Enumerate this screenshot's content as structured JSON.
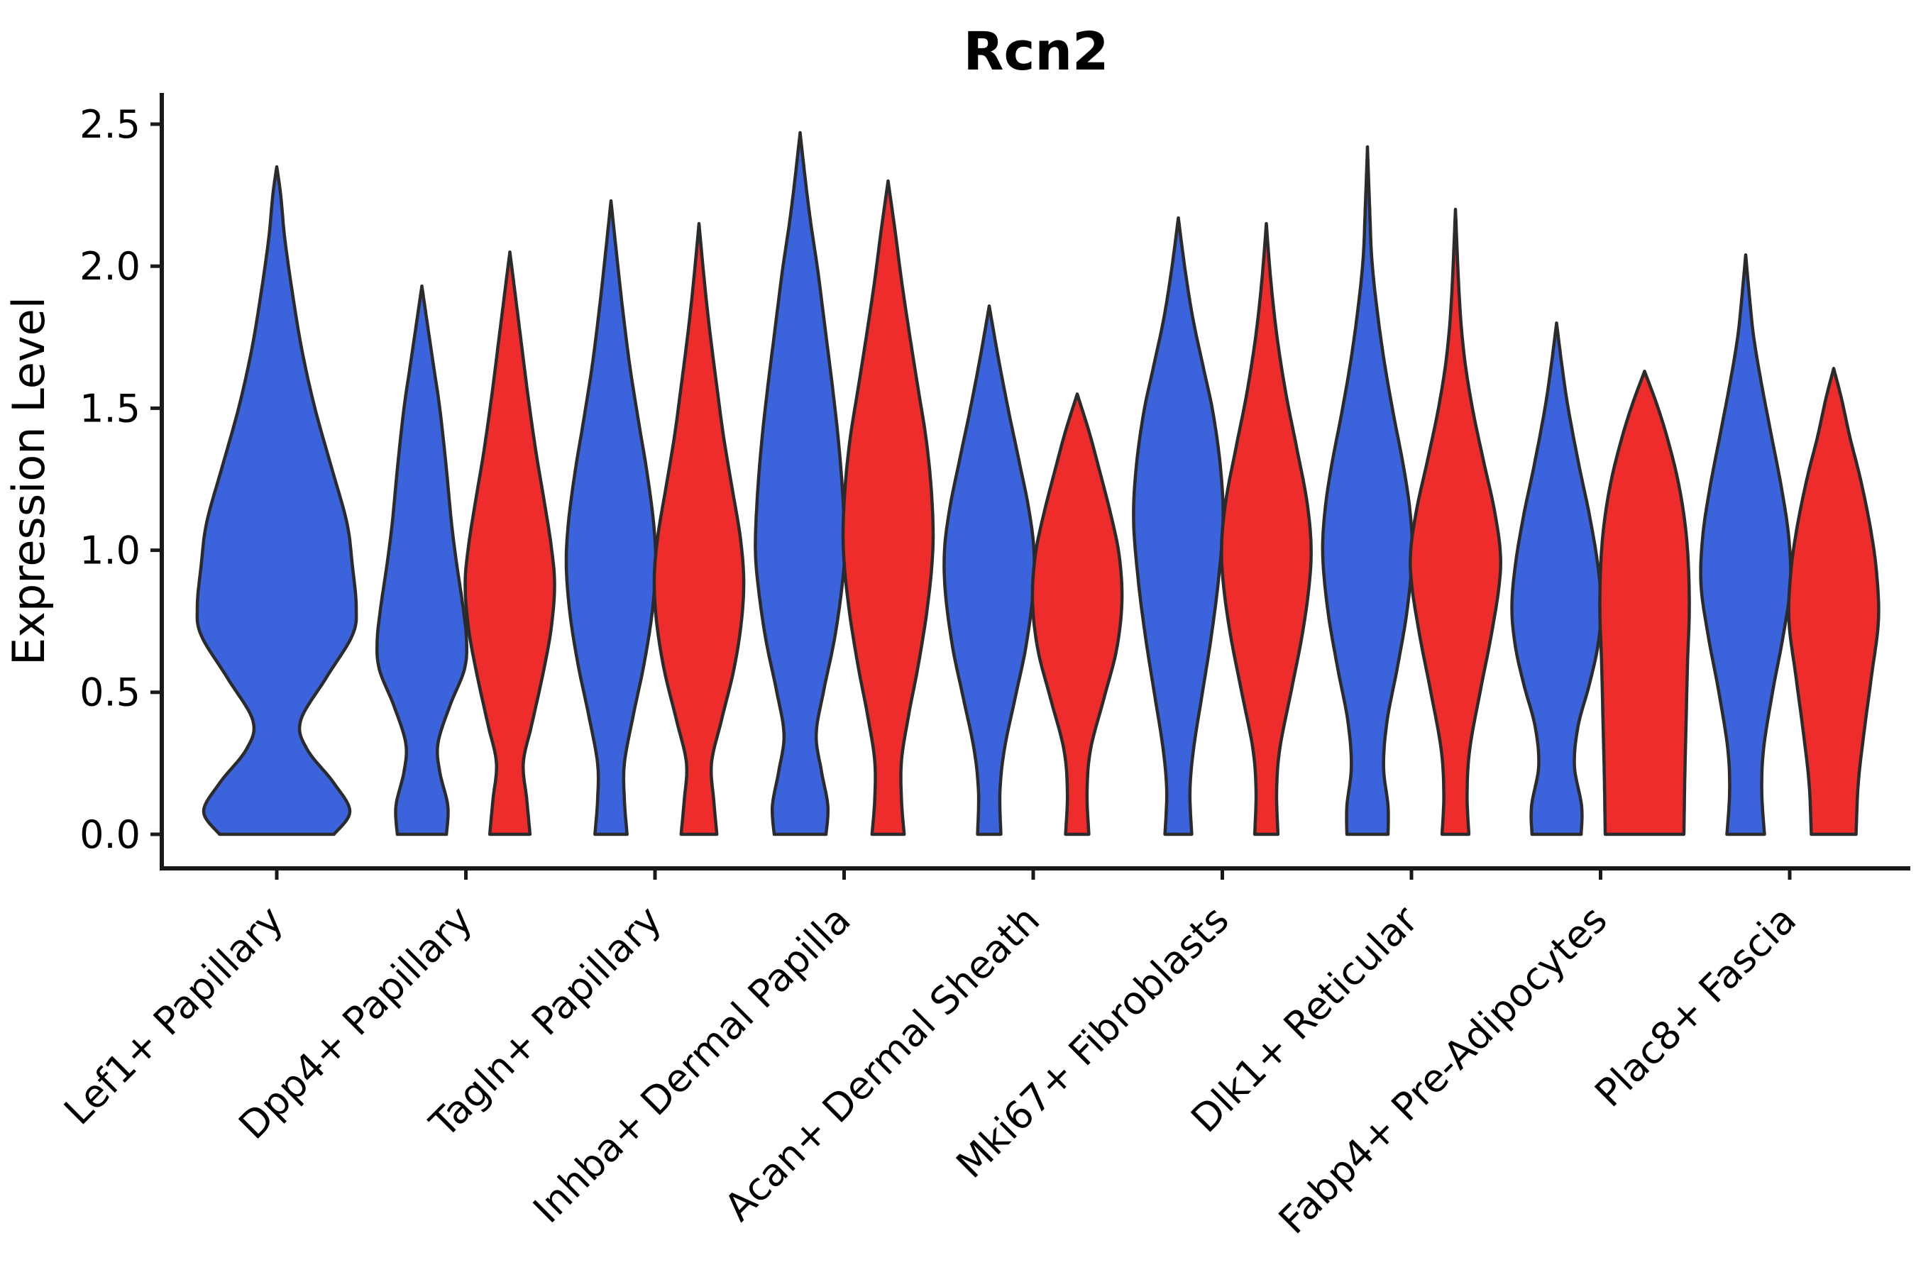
{
  "chart_data": {
    "type": "violin",
    "title": "Rcn2",
    "ylabel": "Expression Level",
    "ylim": [
      0,
      2.5
    ],
    "ytick_labels": [
      "0.0",
      "0.5",
      "1.0",
      "1.5",
      "2.0",
      "2.5"
    ],
    "grid": false,
    "legend": "none",
    "colors": {
      "blue": "#3A63DC",
      "red": "#EE2C2C",
      "outline": "#2B2B2B",
      "axis": "#1A1A1A",
      "text": "#000000"
    },
    "categories": [
      "Lef1+ Papillary",
      "Dpp4+ Papillary",
      "Tagln+ Papillary",
      "Inhba+ Dermal Papilla",
      "Acan+ Dermal Sheath",
      "Mki67+ Fibroblasts",
      "Dlk1+ Reticular",
      "Fabp4+ Pre-Adipocytes",
      "Plac8+ Fascia"
    ],
    "violins": [
      {
        "category": 0,
        "offset": "center",
        "color": "blue",
        "max_expression": 2.35,
        "profile": [
          [
            0,
            0.72
          ],
          [
            0.08,
            0.92
          ],
          [
            0.18,
            0.72
          ],
          [
            0.3,
            0.38
          ],
          [
            0.4,
            0.3
          ],
          [
            0.55,
            0.62
          ],
          [
            0.7,
            0.95
          ],
          [
            0.8,
            1.0
          ],
          [
            0.95,
            0.95
          ],
          [
            1.1,
            0.88
          ],
          [
            1.3,
            0.68
          ],
          [
            1.5,
            0.48
          ],
          [
            1.7,
            0.32
          ],
          [
            1.9,
            0.2
          ],
          [
            2.1,
            0.1
          ],
          [
            2.25,
            0.05
          ],
          [
            2.35,
            0
          ]
        ]
      },
      {
        "category": 1,
        "offset": "left",
        "color": "blue",
        "max_expression": 1.93,
        "profile": [
          [
            0,
            0.55
          ],
          [
            0.1,
            0.58
          ],
          [
            0.22,
            0.4
          ],
          [
            0.32,
            0.36
          ],
          [
            0.45,
            0.62
          ],
          [
            0.58,
            0.95
          ],
          [
            0.68,
            1.0
          ],
          [
            0.8,
            0.92
          ],
          [
            0.95,
            0.78
          ],
          [
            1.1,
            0.66
          ],
          [
            1.3,
            0.54
          ],
          [
            1.5,
            0.4
          ],
          [
            1.65,
            0.26
          ],
          [
            1.8,
            0.12
          ],
          [
            1.93,
            0
          ]
        ]
      },
      {
        "category": 1,
        "offset": "right",
        "color": "red",
        "max_expression": 2.05,
        "profile": [
          [
            0,
            0.45
          ],
          [
            0.12,
            0.38
          ],
          [
            0.25,
            0.3
          ],
          [
            0.38,
            0.48
          ],
          [
            0.55,
            0.72
          ],
          [
            0.72,
            0.92
          ],
          [
            0.88,
            1.0
          ],
          [
            1.02,
            0.92
          ],
          [
            1.18,
            0.76
          ],
          [
            1.35,
            0.58
          ],
          [
            1.55,
            0.4
          ],
          [
            1.75,
            0.24
          ],
          [
            1.9,
            0.12
          ],
          [
            2.05,
            0
          ]
        ]
      },
      {
        "category": 2,
        "offset": "left",
        "color": "blue",
        "max_expression": 2.23,
        "profile": [
          [
            0,
            0.36
          ],
          [
            0.12,
            0.3
          ],
          [
            0.25,
            0.3
          ],
          [
            0.42,
            0.5
          ],
          [
            0.6,
            0.74
          ],
          [
            0.78,
            0.92
          ],
          [
            0.95,
            1.0
          ],
          [
            1.1,
            0.95
          ],
          [
            1.28,
            0.8
          ],
          [
            1.45,
            0.62
          ],
          [
            1.65,
            0.42
          ],
          [
            1.85,
            0.26
          ],
          [
            2.05,
            0.12
          ],
          [
            2.23,
            0
          ]
        ]
      },
      {
        "category": 2,
        "offset": "right",
        "color": "red",
        "max_expression": 2.15,
        "profile": [
          [
            0,
            0.4
          ],
          [
            0.12,
            0.33
          ],
          [
            0.25,
            0.28
          ],
          [
            0.4,
            0.5
          ],
          [
            0.58,
            0.78
          ],
          [
            0.75,
            0.95
          ],
          [
            0.9,
            1.0
          ],
          [
            1.05,
            0.92
          ],
          [
            1.22,
            0.74
          ],
          [
            1.4,
            0.55
          ],
          [
            1.6,
            0.38
          ],
          [
            1.8,
            0.22
          ],
          [
            1.98,
            0.1
          ],
          [
            2.15,
            0
          ]
        ]
      },
      {
        "category": 3,
        "offset": "left",
        "color": "blue",
        "max_expression": 2.47,
        "profile": [
          [
            0,
            0.58
          ],
          [
            0.1,
            0.62
          ],
          [
            0.22,
            0.48
          ],
          [
            0.35,
            0.36
          ],
          [
            0.5,
            0.52
          ],
          [
            0.68,
            0.76
          ],
          [
            0.85,
            0.92
          ],
          [
            1.0,
            1.0
          ],
          [
            1.18,
            0.96
          ],
          [
            1.38,
            0.86
          ],
          [
            1.58,
            0.72
          ],
          [
            1.78,
            0.56
          ],
          [
            1.98,
            0.4
          ],
          [
            2.15,
            0.24
          ],
          [
            2.3,
            0.12
          ],
          [
            2.47,
            0
          ]
        ]
      },
      {
        "category": 3,
        "offset": "right",
        "color": "red",
        "max_expression": 2.3,
        "profile": [
          [
            0,
            0.36
          ],
          [
            0.12,
            0.3
          ],
          [
            0.26,
            0.3
          ],
          [
            0.42,
            0.46
          ],
          [
            0.6,
            0.68
          ],
          [
            0.8,
            0.88
          ],
          [
            1.0,
            1.0
          ],
          [
            1.18,
            0.98
          ],
          [
            1.38,
            0.86
          ],
          [
            1.58,
            0.66
          ],
          [
            1.78,
            0.46
          ],
          [
            1.95,
            0.3
          ],
          [
            2.12,
            0.16
          ],
          [
            2.3,
            0
          ]
        ]
      },
      {
        "category": 4,
        "offset": "left",
        "color": "blue",
        "max_expression": 1.86,
        "profile": [
          [
            0,
            0.26
          ],
          [
            0.15,
            0.24
          ],
          [
            0.3,
            0.34
          ],
          [
            0.48,
            0.58
          ],
          [
            0.66,
            0.82
          ],
          [
            0.85,
            0.98
          ],
          [
            1.0,
            1.0
          ],
          [
            1.15,
            0.88
          ],
          [
            1.32,
            0.66
          ],
          [
            1.5,
            0.42
          ],
          [
            1.68,
            0.2
          ],
          [
            1.86,
            0
          ]
        ]
      },
      {
        "category": 4,
        "offset": "right",
        "color": "red",
        "max_expression": 1.55,
        "profile": [
          [
            0,
            0.26
          ],
          [
            0.15,
            0.22
          ],
          [
            0.3,
            0.3
          ],
          [
            0.48,
            0.6
          ],
          [
            0.65,
            0.88
          ],
          [
            0.82,
            1.0
          ],
          [
            0.98,
            0.94
          ],
          [
            1.12,
            0.76
          ],
          [
            1.28,
            0.5
          ],
          [
            1.42,
            0.26
          ],
          [
            1.55,
            0
          ]
        ]
      },
      {
        "category": 5,
        "offset": "left",
        "color": "blue",
        "max_expression": 2.17,
        "profile": [
          [
            0,
            0.3
          ],
          [
            0.15,
            0.26
          ],
          [
            0.3,
            0.34
          ],
          [
            0.5,
            0.54
          ],
          [
            0.7,
            0.74
          ],
          [
            0.9,
            0.9
          ],
          [
            1.1,
            1.0
          ],
          [
            1.28,
            0.95
          ],
          [
            1.48,
            0.78
          ],
          [
            1.65,
            0.55
          ],
          [
            1.82,
            0.32
          ],
          [
            2.0,
            0.14
          ],
          [
            2.17,
            0
          ]
        ]
      },
      {
        "category": 5,
        "offset": "right",
        "color": "red",
        "max_expression": 2.15,
        "profile": [
          [
            0,
            0.26
          ],
          [
            0.15,
            0.23
          ],
          [
            0.3,
            0.3
          ],
          [
            0.5,
            0.55
          ],
          [
            0.7,
            0.8
          ],
          [
            0.88,
            0.96
          ],
          [
            1.02,
            1.0
          ],
          [
            1.18,
            0.9
          ],
          [
            1.36,
            0.68
          ],
          [
            1.55,
            0.44
          ],
          [
            1.75,
            0.24
          ],
          [
            1.95,
            0.1
          ],
          [
            2.15,
            0
          ]
        ]
      },
      {
        "category": 6,
        "offset": "left",
        "color": "blue",
        "max_expression": 2.42,
        "profile": [
          [
            0,
            0.46
          ],
          [
            0.1,
            0.46
          ],
          [
            0.24,
            0.36
          ],
          [
            0.4,
            0.44
          ],
          [
            0.58,
            0.66
          ],
          [
            0.78,
            0.88
          ],
          [
            0.98,
            1.0
          ],
          [
            1.14,
            0.95
          ],
          [
            1.3,
            0.8
          ],
          [
            1.48,
            0.58
          ],
          [
            1.66,
            0.38
          ],
          [
            1.84,
            0.22
          ],
          [
            2.02,
            0.1
          ],
          [
            2.2,
            0.05
          ],
          [
            2.42,
            0
          ]
        ]
      },
      {
        "category": 6,
        "offset": "right",
        "color": "red",
        "max_expression": 2.2,
        "profile": [
          [
            0,
            0.3
          ],
          [
            0.14,
            0.26
          ],
          [
            0.3,
            0.32
          ],
          [
            0.5,
            0.55
          ],
          [
            0.7,
            0.8
          ],
          [
            0.88,
            0.98
          ],
          [
            1.0,
            1.0
          ],
          [
            1.15,
            0.86
          ],
          [
            1.32,
            0.62
          ],
          [
            1.5,
            0.38
          ],
          [
            1.68,
            0.2
          ],
          [
            1.88,
            0.09
          ],
          [
            2.2,
            0
          ]
        ]
      },
      {
        "category": 7,
        "offset": "left",
        "color": "blue",
        "max_expression": 1.8,
        "profile": [
          [
            0,
            0.55
          ],
          [
            0.1,
            0.56
          ],
          [
            0.24,
            0.4
          ],
          [
            0.38,
            0.48
          ],
          [
            0.52,
            0.72
          ],
          [
            0.66,
            0.92
          ],
          [
            0.8,
            1.0
          ],
          [
            0.95,
            0.92
          ],
          [
            1.12,
            0.74
          ],
          [
            1.3,
            0.5
          ],
          [
            1.5,
            0.26
          ],
          [
            1.65,
            0.12
          ],
          [
            1.8,
            0
          ]
        ]
      },
      {
        "category": 7,
        "offset": "right",
        "color": "red",
        "max_expression": 1.63,
        "profile": [
          [
            0,
            0.88
          ],
          [
            0.2,
            0.9
          ],
          [
            0.4,
            0.93
          ],
          [
            0.6,
            0.96
          ],
          [
            0.78,
            1.0
          ],
          [
            0.95,
            0.98
          ],
          [
            1.1,
            0.9
          ],
          [
            1.25,
            0.74
          ],
          [
            1.4,
            0.5
          ],
          [
            1.52,
            0.26
          ],
          [
            1.63,
            0
          ]
        ]
      },
      {
        "category": 8,
        "offset": "left",
        "color": "blue",
        "max_expression": 2.04,
        "profile": [
          [
            0,
            0.42
          ],
          [
            0.15,
            0.36
          ],
          [
            0.3,
            0.4
          ],
          [
            0.5,
            0.6
          ],
          [
            0.7,
            0.84
          ],
          [
            0.88,
            1.0
          ],
          [
            1.05,
            0.96
          ],
          [
            1.22,
            0.8
          ],
          [
            1.4,
            0.58
          ],
          [
            1.58,
            0.36
          ],
          [
            1.75,
            0.18
          ],
          [
            1.9,
            0.08
          ],
          [
            2.04,
            0
          ]
        ]
      },
      {
        "category": 8,
        "offset": "right",
        "color": "red",
        "max_expression": 1.64,
        "profile": [
          [
            0,
            0.5
          ],
          [
            0.18,
            0.55
          ],
          [
            0.36,
            0.68
          ],
          [
            0.55,
            0.84
          ],
          [
            0.75,
            1.0
          ],
          [
            0.92,
            0.96
          ],
          [
            1.08,
            0.82
          ],
          [
            1.25,
            0.6
          ],
          [
            1.4,
            0.36
          ],
          [
            1.53,
            0.18
          ],
          [
            1.64,
            0
          ]
        ]
      }
    ]
  }
}
